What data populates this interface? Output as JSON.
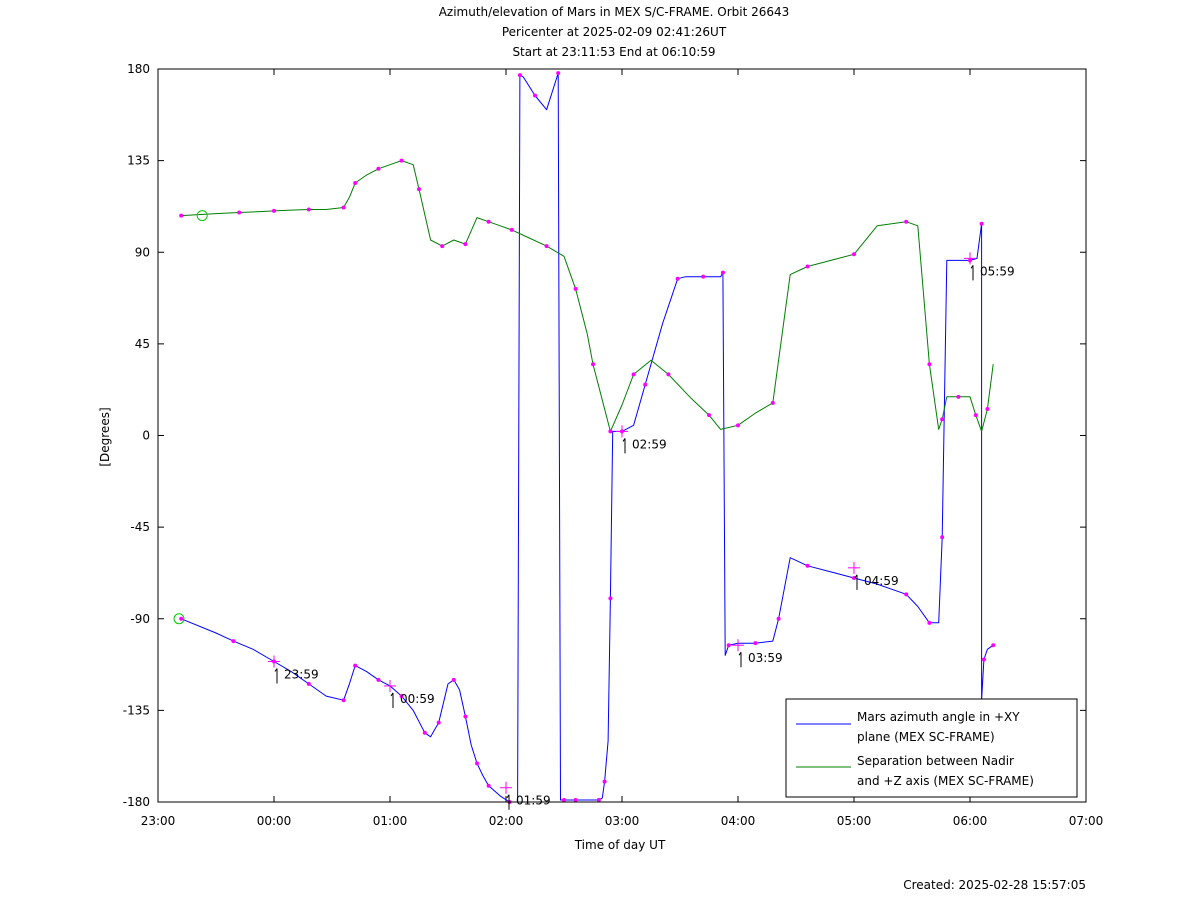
{
  "chart_data": {
    "type": "line",
    "title_lines": [
      "Azimuth/elevation of Mars in MEX S/C-FRAME.  Orbit 26643",
      "Pericenter at 2025-02-09 02:41:26UT",
      "Start at 23:11:53 End at 06:10:59"
    ],
    "xlabel": "Time of day UT",
    "ylabel": "[Degrees]",
    "xlim": [
      -1.0,
      7.0
    ],
    "ylim": [
      -180,
      180
    ],
    "x_ticks": [
      {
        "v": -1.0,
        "label": "23:00"
      },
      {
        "v": 0.0,
        "label": "00:00"
      },
      {
        "v": 1.0,
        "label": "01:00"
      },
      {
        "v": 2.0,
        "label": "02:00"
      },
      {
        "v": 3.0,
        "label": "03:00"
      },
      {
        "v": 4.0,
        "label": "04:00"
      },
      {
        "v": 5.0,
        "label": "05:00"
      },
      {
        "v": 6.0,
        "label": "06:00"
      },
      {
        "v": 7.0,
        "label": "07:00"
      }
    ],
    "y_ticks": [
      {
        "v": 180,
        "label": "180"
      },
      {
        "v": 135,
        "label": "135"
      },
      {
        "v": 90,
        "label": "90"
      },
      {
        "v": 45,
        "label": "45"
      },
      {
        "v": 0,
        "label": "0"
      },
      {
        "v": -45,
        "label": "-45"
      },
      {
        "v": -90,
        "label": "-90"
      },
      {
        "v": -135,
        "label": "-135"
      },
      {
        "v": -180,
        "label": "-180"
      }
    ],
    "series": [
      {
        "name": "Mars azimuth angle in +XY plane (MEX SC-FRAME)",
        "legend_lines": [
          "Mars azimuth angle in +XY",
          "plane (MEX SC-FRAME)"
        ],
        "color": "#0000ff",
        "x": [
          -0.8,
          -0.5,
          -0.35,
          -0.18,
          0.0,
          0.15,
          0.3,
          0.45,
          0.6,
          0.65,
          0.7,
          0.8,
          0.9,
          1.0,
          1.1,
          1.2,
          1.3,
          1.35,
          1.42,
          1.5,
          1.55,
          1.6,
          1.65,
          1.7,
          1.75,
          1.8,
          1.85,
          1.95,
          2.03,
          2.1,
          2.12,
          2.15,
          2.25,
          2.35,
          2.45,
          2.47,
          2.5,
          2.55,
          2.6,
          2.7,
          2.8,
          2.83,
          2.85,
          2.88,
          2.9,
          2.92,
          3.0,
          3.1,
          3.2,
          3.35,
          3.48,
          3.55,
          3.7,
          3.85,
          3.87,
          3.89,
          3.92,
          4.0,
          4.15,
          4.3,
          4.35,
          4.45,
          4.6,
          4.8,
          5.0,
          5.2,
          5.45,
          5.55,
          5.65,
          5.73,
          5.76,
          5.8,
          6.0,
          6.06,
          6.1,
          6.1,
          6.12,
          6.15,
          6.2
        ],
        "y": [
          -90,
          -97,
          -101,
          -105,
          -111,
          -116,
          -122,
          -128,
          -130,
          -122,
          -113,
          -116,
          -120,
          -123,
          -128,
          -135,
          -146,
          -148,
          -141,
          -122,
          -120,
          -125,
          -138,
          -152,
          -161,
          -167,
          -172,
          -177,
          -180,
          -180,
          177,
          176,
          167,
          160,
          178,
          -179,
          -179,
          -179,
          -179,
          -179,
          -179,
          -178,
          -170,
          -150,
          -80,
          2,
          2,
          5,
          25,
          55,
          77,
          78,
          78,
          78,
          80,
          -108,
          -103,
          -102,
          -102,
          -101,
          -90,
          -60,
          -64,
          -67,
          -70,
          -73,
          -78,
          -84,
          -92,
          -92,
          -50,
          86,
          86,
          87,
          104,
          -130,
          -110,
          -105,
          -103
        ]
      },
      {
        "name": "Separation between Nadir and +Z axis (MEX SC-FRAME)",
        "legend_lines": [
          "Separation between Nadir",
          "and +Z axis (MEX SC-FRAME)"
        ],
        "color": "#007f00",
        "x": [
          -0.8,
          -0.5,
          -0.3,
          -0.1,
          0.0,
          0.15,
          0.3,
          0.45,
          0.6,
          0.65,
          0.7,
          0.8,
          0.9,
          1.0,
          1.1,
          1.2,
          1.25,
          1.35,
          1.45,
          1.55,
          1.65,
          1.75,
          1.85,
          1.95,
          2.05,
          2.2,
          2.35,
          2.5,
          2.6,
          2.7,
          2.75,
          2.85,
          2.9,
          3.0,
          3.1,
          3.25,
          3.4,
          3.6,
          3.75,
          3.85,
          4.0,
          4.15,
          4.3,
          4.45,
          4.6,
          4.8,
          5.0,
          5.2,
          5.45,
          5.55,
          5.65,
          5.73,
          5.76,
          5.8,
          5.9,
          6.0,
          6.05,
          6.1,
          6.15,
          6.2
        ],
        "y": [
          108,
          109,
          109.5,
          110,
          110.3,
          110.7,
          111,
          111,
          112,
          117,
          124,
          128,
          131,
          133,
          135,
          133,
          121,
          96,
          93,
          96,
          94,
          107,
          105,
          103,
          101,
          97,
          93,
          88,
          72,
          50,
          35,
          13,
          2,
          15,
          30,
          37,
          30,
          18,
          10,
          3,
          5,
          11,
          16,
          79,
          83,
          86,
          89,
          103,
          105,
          103,
          35,
          3,
          8,
          19,
          19,
          19,
          10,
          2,
          13,
          35
        ]
      }
    ],
    "markers": [
      {
        "x": -1.0,
        "y": -90,
        "label": ""
      },
      {
        "x": -0.8,
        "y": 108,
        "label": ""
      },
      {
        "x": 0.0,
        "y": -111,
        "label": "23:59"
      },
      {
        "x": 1.0,
        "y": -123,
        "label": "00:59"
      },
      {
        "x": 2.0,
        "y": -173,
        "label": "01:59"
      },
      {
        "x": 3.0,
        "y": 2,
        "label": "02:59"
      },
      {
        "x": 4.0,
        "y": -103,
        "label": "03:59"
      },
      {
        "x": 5.0,
        "y": -65,
        "label": "04:59"
      },
      {
        "x": 6.0,
        "y": 87,
        "label": "05:59"
      }
    ],
    "legend_position": "bottom-right",
    "created": "Created: 2025-02-28 15:57:05"
  }
}
